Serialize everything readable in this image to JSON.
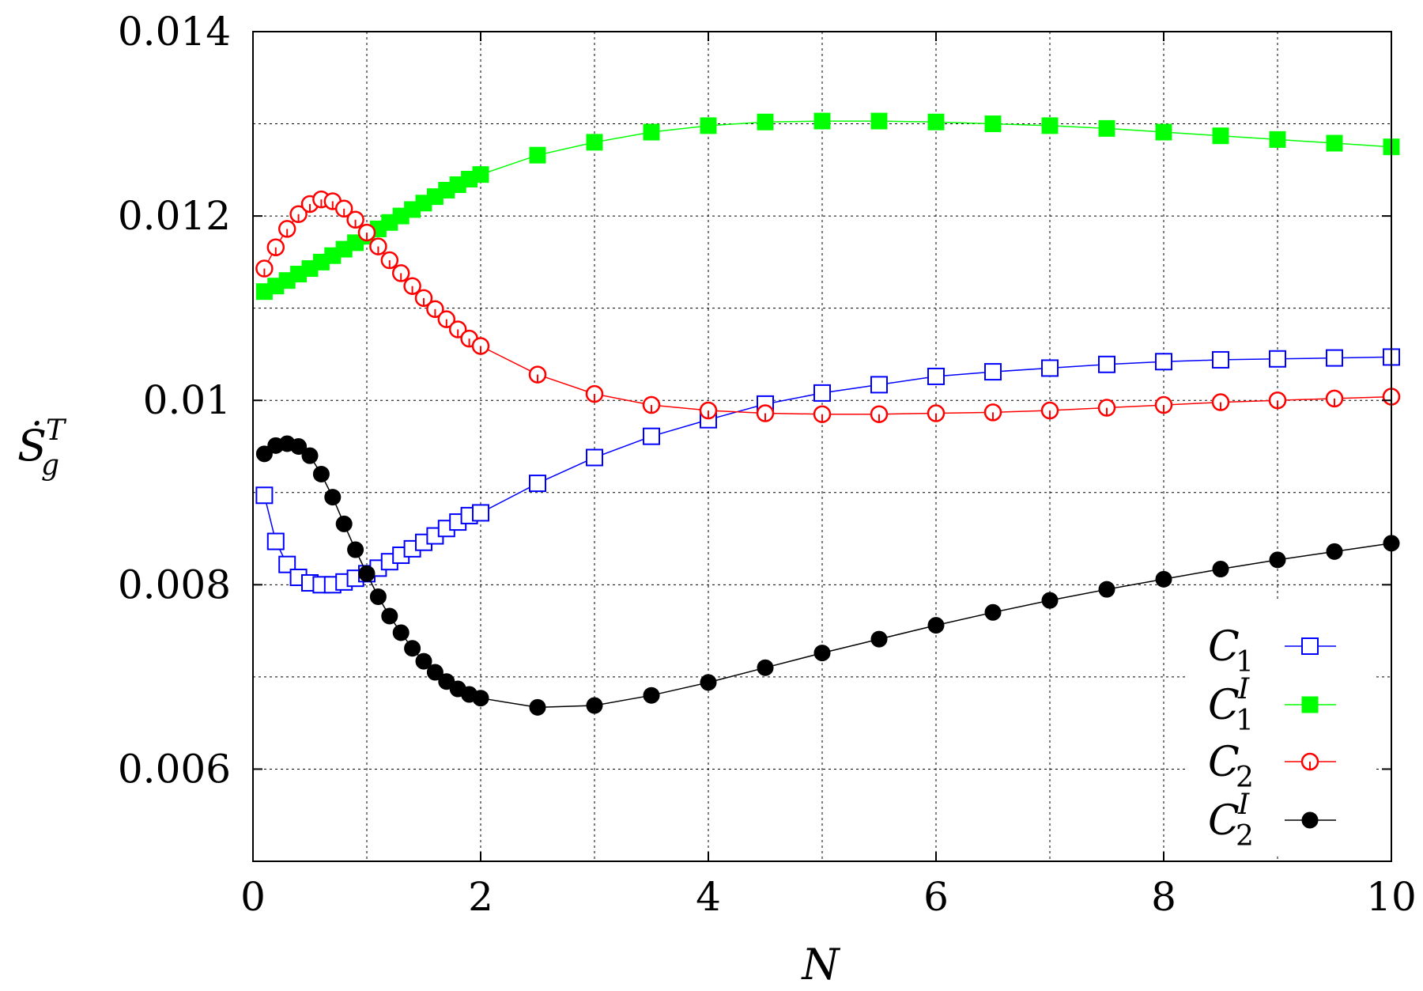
{
  "chart_data": {
    "type": "line",
    "xlabel": "N",
    "ylabel": "Ṡ",
    "ylabel_sub": "g",
    "ylabel_sup": "T",
    "xlim": [
      0,
      10
    ],
    "ylim": [
      0.005,
      0.014
    ],
    "x_ticks": [
      0,
      2,
      4,
      6,
      8,
      10
    ],
    "x_tick_labels": [
      "0",
      "2",
      "4",
      "6",
      "8",
      "10"
    ],
    "y_ticks": [
      0.006,
      0.008,
      0.01,
      0.012,
      0.014
    ],
    "y_tick_labels": [
      "0.006",
      "0.008",
      "0.01",
      "0.012",
      "0.014"
    ],
    "grid": true,
    "legend_position": "bottom-right",
    "series": [
      {
        "name": "C1",
        "label_main": "C",
        "label_sub": "1",
        "label_sup": "",
        "color": "#0000ff",
        "marker": "open-square",
        "x": [
          0.1,
          0.2,
          0.3,
          0.4,
          0.5,
          0.6,
          0.7,
          0.8,
          0.9,
          1.0,
          1.1,
          1.2,
          1.3,
          1.4,
          1.5,
          1.6,
          1.7,
          1.8,
          1.9,
          2.0,
          2.5,
          3.0,
          3.5,
          4.0,
          4.5,
          5.0,
          5.5,
          6.0,
          6.5,
          7.0,
          7.5,
          8.0,
          8.5,
          9.0,
          9.5,
          10.0
        ],
        "y": [
          0.00897,
          0.00847,
          0.00822,
          0.00808,
          0.00802,
          0.008,
          0.008,
          0.00803,
          0.00807,
          0.00812,
          0.00818,
          0.00825,
          0.00832,
          0.00839,
          0.00846,
          0.00853,
          0.00861,
          0.00868,
          0.00875,
          0.00878,
          0.0091,
          0.00938,
          0.00961,
          0.00979,
          0.00996,
          0.01008,
          0.01017,
          0.01026,
          0.01031,
          0.01035,
          0.01039,
          0.01042,
          0.01044,
          0.01045,
          0.01046,
          0.01047
        ]
      },
      {
        "name": "C1I",
        "label_main": "C",
        "label_sub": "1",
        "label_sup": "I",
        "color": "#00ff00",
        "marker": "filled-square",
        "x": [
          0.1,
          0.2,
          0.3,
          0.4,
          0.5,
          0.6,
          0.7,
          0.8,
          0.9,
          1.0,
          1.1,
          1.2,
          1.3,
          1.4,
          1.5,
          1.6,
          1.7,
          1.8,
          1.9,
          2.0,
          2.5,
          3.0,
          3.5,
          4.0,
          4.5,
          5.0,
          5.5,
          6.0,
          6.5,
          7.0,
          7.5,
          8.0,
          8.5,
          9.0,
          9.5,
          10.0
        ],
        "y": [
          0.01118,
          0.01124,
          0.0113,
          0.01137,
          0.01143,
          0.0115,
          0.01157,
          0.01164,
          0.01171,
          0.01178,
          0.01186,
          0.01193,
          0.012,
          0.01207,
          0.01214,
          0.01221,
          0.01228,
          0.01234,
          0.0124,
          0.01245,
          0.01266,
          0.0128,
          0.01291,
          0.01298,
          0.01302,
          0.01303,
          0.01303,
          0.01302,
          0.013,
          0.01298,
          0.01295,
          0.01291,
          0.01287,
          0.01283,
          0.01279,
          0.01275
        ]
      },
      {
        "name": "C2",
        "label_main": "C",
        "label_sub": "2",
        "label_sup": "",
        "color": "#ff0000",
        "marker": "open-circle",
        "x": [
          0.1,
          0.2,
          0.3,
          0.4,
          0.5,
          0.6,
          0.7,
          0.8,
          0.9,
          1.0,
          1.1,
          1.2,
          1.3,
          1.4,
          1.5,
          1.6,
          1.7,
          1.8,
          1.9,
          2.0,
          2.5,
          3.0,
          3.5,
          4.0,
          4.5,
          5.0,
          5.5,
          6.0,
          6.5,
          7.0,
          7.5,
          8.0,
          8.5,
          9.0,
          9.5,
          10.0
        ],
        "y": [
          0.01143,
          0.01166,
          0.01186,
          0.01202,
          0.01213,
          0.01218,
          0.01216,
          0.01208,
          0.01196,
          0.01182,
          0.01167,
          0.01152,
          0.01138,
          0.01124,
          0.01111,
          0.01099,
          0.01088,
          0.01077,
          0.01067,
          0.01059,
          0.01028,
          0.01007,
          0.00995,
          0.00989,
          0.00986,
          0.00985,
          0.00985,
          0.00986,
          0.00987,
          0.00989,
          0.00992,
          0.00995,
          0.00998,
          0.01,
          0.01002,
          0.01004
        ]
      },
      {
        "name": "C2I",
        "label_main": "C",
        "label_sub": "2",
        "label_sup": "I",
        "color": "#000000",
        "marker": "filled-circle",
        "x": [
          0.1,
          0.2,
          0.3,
          0.4,
          0.5,
          0.6,
          0.7,
          0.8,
          0.9,
          1.0,
          1.1,
          1.2,
          1.3,
          1.4,
          1.5,
          1.6,
          1.7,
          1.8,
          1.9,
          2.0,
          2.5,
          3.0,
          3.5,
          4.0,
          4.5,
          5.0,
          5.5,
          6.0,
          6.5,
          7.0,
          7.5,
          8.0,
          8.5,
          9.0,
          9.5,
          10.0
        ],
        "y": [
          0.00942,
          0.00951,
          0.00953,
          0.0095,
          0.0094,
          0.0092,
          0.00895,
          0.00866,
          0.00838,
          0.00812,
          0.00787,
          0.00766,
          0.00748,
          0.00731,
          0.00717,
          0.00705,
          0.00695,
          0.00687,
          0.00681,
          0.00677,
          0.00667,
          0.00669,
          0.0068,
          0.00694,
          0.0071,
          0.00726,
          0.00741,
          0.00756,
          0.0077,
          0.00783,
          0.00795,
          0.00806,
          0.00817,
          0.00827,
          0.00836,
          0.00845
        ]
      }
    ]
  }
}
